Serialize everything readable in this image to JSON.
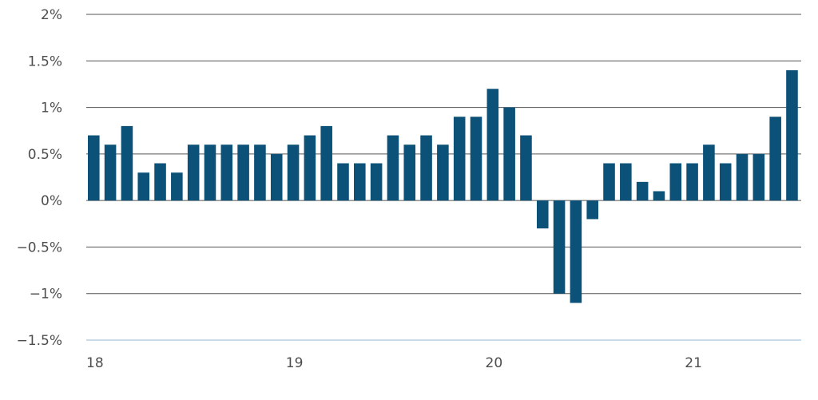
{
  "chart_data": {
    "type": "bar",
    "title": "",
    "xlabel": "",
    "ylabel": "",
    "ylim": [
      -1.5,
      2
    ],
    "y_ticks": [
      {
        "value": 2,
        "label": "2%"
      },
      {
        "value": 1.5,
        "label": "1.5%"
      },
      {
        "value": 1,
        "label": "1%"
      },
      {
        "value": 0.5,
        "label": "0.5%"
      },
      {
        "value": 0,
        "label": "0%"
      },
      {
        "value": -0.5,
        "label": "−0.5%"
      },
      {
        "value": -1,
        "label": "−1%"
      },
      {
        "value": -1.5,
        "label": "−1.5%"
      }
    ],
    "x_ticks": [
      {
        "index": 0,
        "label": "18"
      },
      {
        "index": 12,
        "label": "19"
      },
      {
        "index": 24,
        "label": "20"
      },
      {
        "index": 36,
        "label": "21"
      }
    ],
    "values": [
      0.7,
      0.6,
      0.8,
      0.3,
      0.4,
      0.3,
      0.6,
      0.6,
      0.6,
      0.6,
      0.6,
      0.5,
      0.6,
      0.7,
      0.8,
      0.4,
      0.4,
      0.4,
      0.7,
      0.6,
      0.7,
      0.6,
      0.9,
      0.9,
      1.2,
      1.0,
      0.7,
      -0.3,
      -1.0,
      -1.1,
      -0.2,
      0.4,
      0.4,
      0.2,
      0.1,
      0.4,
      0.4,
      0.6,
      0.4,
      0.5,
      0.5,
      0.9,
      1.4
    ],
    "grid": true,
    "colors": {
      "bar": "#0b5178",
      "grid": "#555555",
      "baseline_bottom": "#b7cde0",
      "text": "#4d4d4d"
    }
  }
}
